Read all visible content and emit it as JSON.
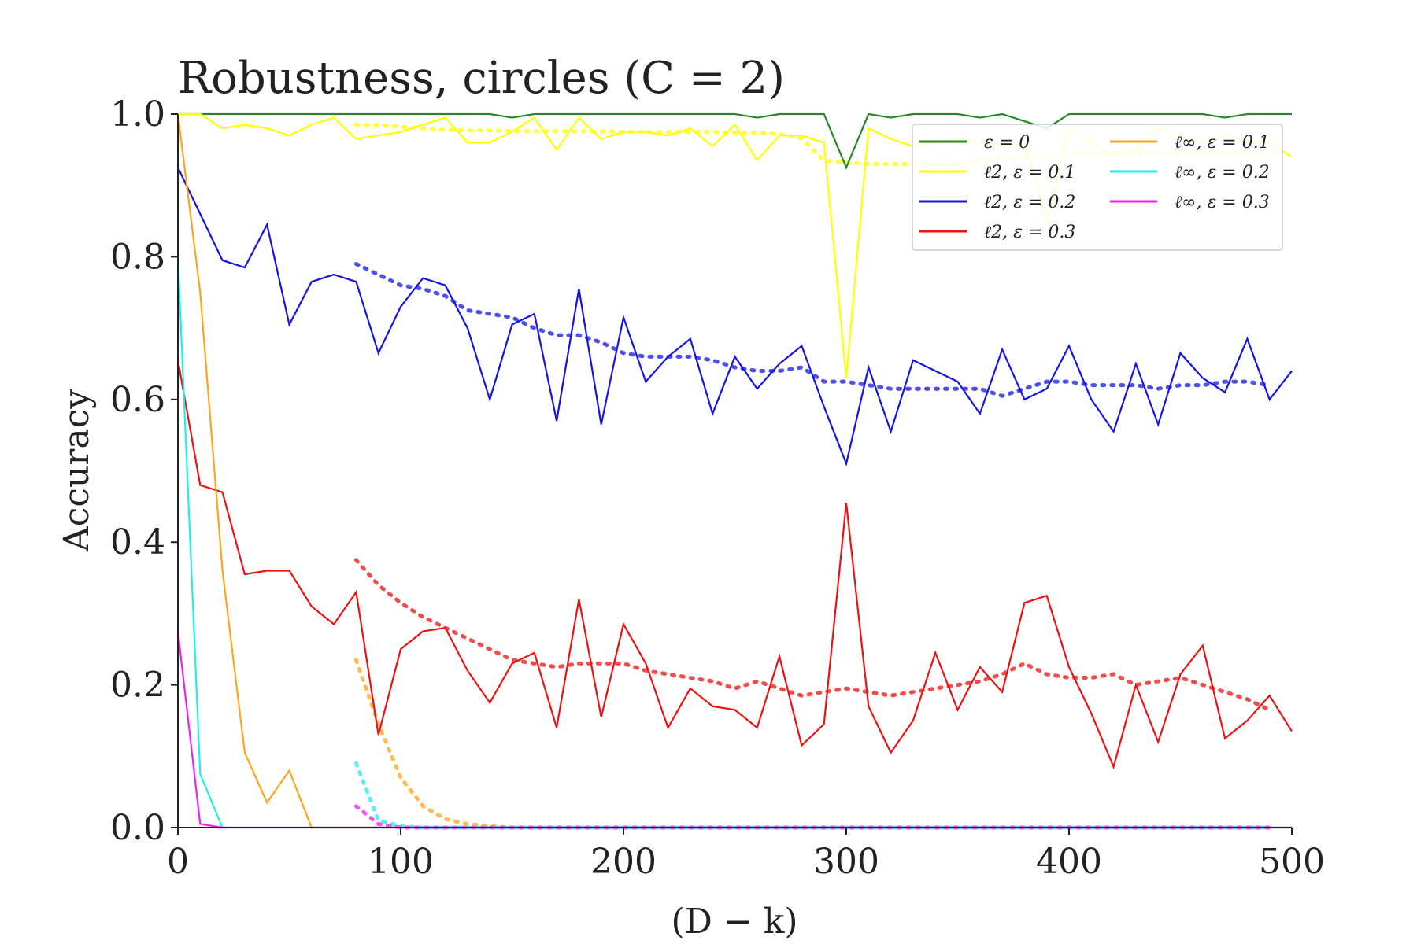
{
  "chart_data": {
    "type": "line",
    "title": "Robustness, circles (C = 2)",
    "xlabel": "(D − k)",
    "ylabel": "Accuracy",
    "xlim": [
      0,
      500
    ],
    "ylim": [
      0,
      1
    ],
    "x_ticks": [
      0,
      100,
      200,
      300,
      400,
      500
    ],
    "y_ticks": [
      "0.0",
      "0.2",
      "0.4",
      "0.6",
      "0.8",
      "1.0"
    ],
    "grid": false,
    "legend": {
      "placement": "top-right",
      "columns": 2
    },
    "x": [
      0,
      10,
      20,
      30,
      40,
      50,
      60,
      70,
      80,
      90,
      100,
      110,
      120,
      130,
      140,
      150,
      160,
      170,
      180,
      190,
      200,
      210,
      220,
      230,
      240,
      250,
      260,
      270,
      280,
      290,
      300,
      310,
      320,
      330,
      340,
      350,
      360,
      370,
      380,
      390,
      400,
      410,
      420,
      430,
      440,
      450,
      460,
      470,
      480,
      490,
      500
    ],
    "series": [
      {
        "name": "ε = 0",
        "color": "#228b22",
        "values": [
          1.0,
          1.0,
          1.0,
          1.0,
          1.0,
          1.0,
          1.0,
          1.0,
          1.0,
          1.0,
          1.0,
          1.0,
          1.0,
          1.0,
          1.0,
          0.995,
          1.0,
          1.0,
          1.0,
          1.0,
          1.0,
          1.0,
          1.0,
          1.0,
          1.0,
          1.0,
          0.995,
          1.0,
          1.0,
          1.0,
          0.925,
          1.0,
          0.995,
          1.0,
          1.0,
          1.0,
          0.995,
          1.0,
          0.99,
          0.98,
          1.0,
          1.0,
          1.0,
          1.0,
          1.0,
          1.0,
          1.0,
          0.995,
          1.0,
          1.0,
          1.0
        ],
        "trend_x": [],
        "trend": []
      },
      {
        "name": "ℓ2, ε = 0.1",
        "color": "#ffff00",
        "values": [
          1.0,
          1.0,
          0.98,
          0.985,
          0.98,
          0.97,
          0.985,
          0.995,
          0.965,
          0.97,
          0.975,
          0.985,
          0.995,
          0.96,
          0.96,
          0.975,
          0.995,
          0.95,
          0.995,
          0.965,
          0.975,
          0.975,
          0.97,
          0.98,
          0.955,
          0.985,
          0.935,
          0.97,
          0.97,
          0.96,
          0.63,
          0.98,
          0.965,
          0.955,
          0.96,
          0.965,
          0.96,
          0.955,
          0.96,
          0.85,
          0.98,
          0.96,
          0.94,
          0.95,
          0.98,
          0.97,
          0.96,
          0.97,
          0.96,
          0.96,
          0.94
        ],
        "trend_x": [
          80,
          90,
          100,
          110,
          120,
          130,
          140,
          150,
          160,
          170,
          180,
          190,
          200,
          210,
          220,
          230,
          240,
          250,
          260,
          270,
          280,
          290,
          300,
          310,
          320,
          330,
          340,
          350,
          360,
          370,
          380,
          390,
          400,
          410,
          420,
          430,
          440,
          450,
          460,
          470,
          480,
          490
        ],
        "trend": [
          0.985,
          0.985,
          0.982,
          0.98,
          0.978,
          0.977,
          0.977,
          0.976,
          0.976,
          0.976,
          0.976,
          0.976,
          0.975,
          0.975,
          0.975,
          0.975,
          0.975,
          0.974,
          0.974,
          0.972,
          0.966,
          0.935,
          0.932,
          0.93,
          0.93,
          0.93,
          0.93,
          0.93,
          0.935,
          0.94,
          0.94,
          0.94,
          0.945,
          0.945,
          0.945,
          0.945,
          0.945,
          0.945,
          0.945,
          0.945,
          0.945,
          0.945
        ]
      },
      {
        "name": "ℓ2, ε = 0.2",
        "color": "#1414e6",
        "values": [
          0.925,
          0.86,
          0.795,
          0.785,
          0.845,
          0.705,
          0.765,
          0.775,
          0.765,
          0.665,
          0.73,
          0.77,
          0.76,
          0.7,
          0.6,
          0.705,
          0.72,
          0.57,
          0.755,
          0.565,
          0.715,
          0.625,
          0.66,
          0.685,
          0.58,
          0.66,
          0.615,
          0.65,
          0.675,
          0.59,
          0.51,
          0.645,
          0.555,
          0.655,
          0.64,
          0.625,
          0.58,
          0.67,
          0.6,
          0.615,
          0.675,
          0.6,
          0.555,
          0.65,
          0.565,
          0.665,
          0.63,
          0.61,
          0.685,
          0.6,
          0.64
        ],
        "trend_x": [
          80,
          90,
          100,
          110,
          120,
          130,
          140,
          150,
          160,
          170,
          180,
          190,
          200,
          210,
          220,
          230,
          240,
          250,
          260,
          270,
          280,
          290,
          300,
          310,
          320,
          330,
          340,
          350,
          360,
          370,
          380,
          390,
          400,
          410,
          420,
          430,
          440,
          450,
          460,
          470,
          480,
          490
        ],
        "trend": [
          0.79,
          0.775,
          0.76,
          0.755,
          0.745,
          0.725,
          0.72,
          0.715,
          0.7,
          0.69,
          0.69,
          0.68,
          0.665,
          0.66,
          0.66,
          0.66,
          0.655,
          0.645,
          0.64,
          0.64,
          0.645,
          0.625,
          0.625,
          0.62,
          0.615,
          0.615,
          0.615,
          0.615,
          0.615,
          0.605,
          0.615,
          0.625,
          0.625,
          0.62,
          0.62,
          0.62,
          0.615,
          0.62,
          0.62,
          0.625,
          0.625,
          0.62
        ]
      },
      {
        "name": "ℓ2, ε = 0.3",
        "color": "#ee1111",
        "values": [
          0.655,
          0.48,
          0.47,
          0.355,
          0.36,
          0.36,
          0.31,
          0.285,
          0.33,
          0.13,
          0.25,
          0.275,
          0.28,
          0.22,
          0.175,
          0.23,
          0.245,
          0.14,
          0.32,
          0.155,
          0.285,
          0.23,
          0.14,
          0.195,
          0.17,
          0.165,
          0.14,
          0.24,
          0.115,
          0.145,
          0.455,
          0.17,
          0.105,
          0.15,
          0.245,
          0.165,
          0.225,
          0.19,
          0.315,
          0.325,
          0.225,
          0.16,
          0.085,
          0.2,
          0.12,
          0.215,
          0.255,
          0.125,
          0.15,
          0.185,
          0.135
        ],
        "trend_x": [
          80,
          90,
          100,
          110,
          120,
          130,
          140,
          150,
          160,
          170,
          180,
          190,
          200,
          210,
          220,
          230,
          240,
          250,
          260,
          270,
          280,
          290,
          300,
          310,
          320,
          330,
          340,
          350,
          360,
          370,
          380,
          390,
          400,
          410,
          420,
          430,
          440,
          450,
          460,
          470,
          480,
          490
        ],
        "trend": [
          0.375,
          0.34,
          0.315,
          0.295,
          0.28,
          0.265,
          0.25,
          0.235,
          0.23,
          0.225,
          0.23,
          0.23,
          0.23,
          0.22,
          0.215,
          0.21,
          0.205,
          0.195,
          0.205,
          0.195,
          0.185,
          0.19,
          0.195,
          0.19,
          0.185,
          0.19,
          0.195,
          0.2,
          0.205,
          0.215,
          0.23,
          0.215,
          0.21,
          0.21,
          0.215,
          0.2,
          0.205,
          0.21,
          0.2,
          0.19,
          0.18,
          0.165
        ]
      },
      {
        "name": "ℓ∞, ε = 0.1",
        "color": "#ffa51a",
        "values": [
          1.0,
          0.75,
          0.36,
          0.105,
          0.035,
          0.08,
          0.0,
          0.0,
          0.0,
          0.0,
          0.0,
          0.0,
          0.0,
          0.0,
          0.0,
          0.0,
          0.0,
          0.0,
          0.0,
          0.0,
          0.0,
          0.0,
          0.0,
          0.0,
          0.0,
          0.0,
          0.0,
          0.0,
          0.0,
          0.0,
          0.0,
          0.0,
          0.0,
          0.0,
          0.0,
          0.0,
          0.0,
          0.0,
          0.0,
          0.0,
          0.0,
          0.0,
          0.0,
          0.0,
          0.0,
          0.0,
          0.0,
          0.0,
          0.0,
          0.0,
          0.0
        ],
        "trend_x": [
          80,
          90,
          100,
          110,
          120,
          130,
          140,
          150,
          160,
          170,
          180,
          190,
          200,
          210,
          220,
          230,
          240,
          250,
          260,
          270,
          280,
          290,
          300,
          310,
          320,
          330,
          340,
          350,
          360,
          370,
          380,
          390,
          400,
          410,
          420,
          430,
          440,
          450,
          460,
          470,
          480,
          490
        ],
        "trend": [
          0.235,
          0.145,
          0.07,
          0.03,
          0.012,
          0.005,
          0.002,
          0.0,
          0.0,
          0.0,
          0.0,
          0.0,
          0.0,
          0.0,
          0.0,
          0.0,
          0.0,
          0.0,
          0.0,
          0.0,
          0.0,
          0.0,
          0.0,
          0.0,
          0.0,
          0.0,
          0.0,
          0.0,
          0.0,
          0.0,
          0.0,
          0.0,
          0.0,
          0.0,
          0.0,
          0.0,
          0.0,
          0.0,
          0.0,
          0.0,
          0.0,
          0.0
        ]
      },
      {
        "name": "ℓ∞, ε = 0.2",
        "color": "#22eeee",
        "values": [
          0.8,
          0.075,
          0.0,
          0.0,
          0.0,
          0.0,
          0.0,
          0.0,
          0.0,
          0.0,
          0.0,
          0.0,
          0.0,
          0.0,
          0.0,
          0.0,
          0.0,
          0.0,
          0.0,
          0.0,
          0.0,
          0.0,
          0.0,
          0.0,
          0.0,
          0.0,
          0.0,
          0.0,
          0.0,
          0.0,
          0.0,
          0.0,
          0.0,
          0.0,
          0.0,
          0.0,
          0.0,
          0.0,
          0.0,
          0.0,
          0.0,
          0.0,
          0.0,
          0.0,
          0.0,
          0.0,
          0.0,
          0.0,
          0.0,
          0.0,
          0.0
        ],
        "trend_x": [
          80,
          90,
          100,
          110,
          120,
          130,
          140,
          150,
          160,
          170,
          180,
          190,
          200,
          210,
          220,
          230,
          240,
          250,
          260,
          270,
          280,
          290,
          300,
          310,
          320,
          330,
          340,
          350,
          360,
          370,
          380,
          390,
          400,
          410,
          420,
          430,
          440,
          450,
          460,
          470,
          480,
          490
        ],
        "trend": [
          0.09,
          0.01,
          0.002,
          0.0,
          0.0,
          0.0,
          0.0,
          0.0,
          0.0,
          0.0,
          0.0,
          0.0,
          0.0,
          0.0,
          0.0,
          0.0,
          0.0,
          0.0,
          0.0,
          0.0,
          0.0,
          0.0,
          0.0,
          0.0,
          0.0,
          0.0,
          0.0,
          0.0,
          0.0,
          0.0,
          0.0,
          0.0,
          0.0,
          0.0,
          0.0,
          0.0,
          0.0,
          0.0,
          0.0,
          0.0,
          0.0,
          0.0
        ]
      },
      {
        "name": "ℓ∞, ε = 0.3",
        "color": "#ee22ee",
        "values": [
          0.275,
          0.005,
          0.0,
          0.0,
          0.0,
          0.0,
          0.0,
          0.0,
          0.0,
          0.0,
          0.0,
          0.0,
          0.0,
          0.0,
          0.0,
          0.0,
          0.0,
          0.0,
          0.0,
          0.0,
          0.0,
          0.0,
          0.0,
          0.0,
          0.0,
          0.0,
          0.0,
          0.0,
          0.0,
          0.0,
          0.0,
          0.0,
          0.0,
          0.0,
          0.0,
          0.0,
          0.0,
          0.0,
          0.0,
          0.0,
          0.0,
          0.0,
          0.0,
          0.0,
          0.0,
          0.0,
          0.0,
          0.0,
          0.0,
          0.0,
          0.0
        ],
        "trend_x": [
          80,
          90,
          100,
          110,
          120,
          130,
          140,
          150,
          160,
          170,
          180,
          190,
          200,
          210,
          220,
          230,
          240,
          250,
          260,
          270,
          280,
          290,
          300,
          310,
          320,
          330,
          340,
          350,
          360,
          370,
          380,
          390,
          400,
          410,
          420,
          430,
          440,
          450,
          460,
          470,
          480,
          490
        ],
        "trend": [
          0.03,
          0.005,
          0.0,
          0.0,
          0.0,
          0.0,
          0.0,
          0.0,
          0.0,
          0.0,
          0.0,
          0.0,
          0.0,
          0.0,
          0.0,
          0.0,
          0.0,
          0.0,
          0.0,
          0.0,
          0.0,
          0.0,
          0.0,
          0.0,
          0.0,
          0.0,
          0.0,
          0.0,
          0.0,
          0.0,
          0.0,
          0.0,
          0.0,
          0.0,
          0.0,
          0.0,
          0.0,
          0.0,
          0.0,
          0.0,
          0.0,
          0.0
        ]
      }
    ]
  }
}
